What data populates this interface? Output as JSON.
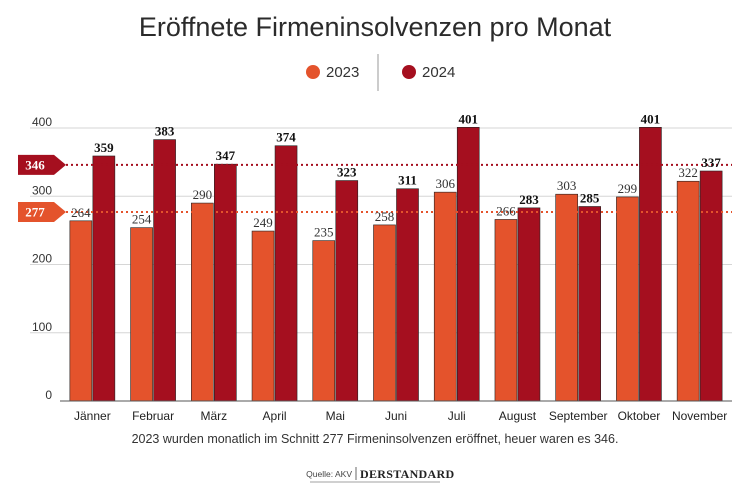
{
  "colors": {
    "series2023": "#e4532c",
    "series2024": "#a50f1f",
    "grid": "#d6d6d6",
    "axis": "#555555"
  },
  "chart_data": {
    "type": "bar",
    "title": "Eröffnete Firmeninsolvenzen pro Monat",
    "categories": [
      "Jänner",
      "Februar",
      "März",
      "April",
      "Mai",
      "Juni",
      "Juli",
      "August",
      "September",
      "Oktober",
      "November"
    ],
    "series": [
      {
        "name": "2023",
        "values": [
          264,
          254,
          290,
          249,
          235,
          258,
          306,
          266,
          303,
          299,
          322
        ]
      },
      {
        "name": "2024",
        "values": [
          359,
          383,
          347,
          374,
          323,
          311,
          401,
          283,
          285,
          401,
          337
        ]
      }
    ],
    "ylim": [
      0,
      400
    ],
    "yticks": [
      0,
      100,
      200,
      300,
      400
    ],
    "xlabel": "",
    "ylabel": "",
    "grid": true,
    "legend": "top-center",
    "reference_lines": [
      {
        "series": "2024",
        "label": "346",
        "value": 346
      },
      {
        "series": "2023",
        "label": "277",
        "value": 277
      }
    ],
    "caption": "2023 wurden monatlich im Schnitt 277 Firmeninsolvenzen eröffnet, heuer waren es 346.",
    "source": "Quelle: AKV",
    "brand": "DERSTANDARD"
  }
}
